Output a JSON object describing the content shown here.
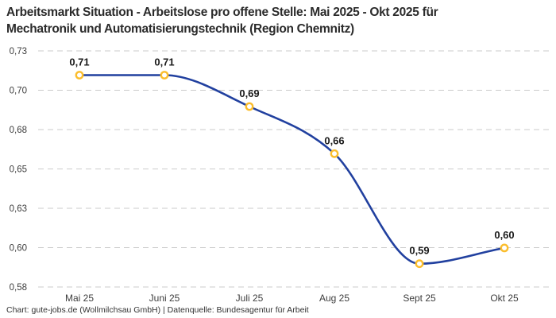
{
  "header": {
    "title_lines": [
      "Arbeitsmarkt Situation - Arbeitslose pro offene Stelle: Mai 2025 - Okt 2025 für",
      "Mechatronik und Automatisierungstechnik (Region Chemnitz)"
    ]
  },
  "chart_data": {
    "type": "line",
    "title": "Arbeitsmarkt Situation - Arbeitslose pro offene Stelle: Mai 2025 - Okt 2025 für Mechatronik und Automatisierungstechnik (Region Chemnitz)",
    "categories": [
      "Mai 25",
      "Juni 25",
      "Juli 25",
      "Aug 25",
      "Sept 25",
      "Okt 25"
    ],
    "values": [
      0.71,
      0.71,
      0.69,
      0.66,
      0.59,
      0.6
    ],
    "point_labels": [
      "0,71",
      "0,71",
      "0,69",
      "0,66",
      "0,59",
      "0,60"
    ],
    "y_tick_labels": [
      "0,73",
      "0,70",
      "0,68",
      "0,65",
      "0,63",
      "0,60",
      "0,58"
    ],
    "ylim": [
      0.58,
      0.73
    ],
    "xlabel": "",
    "ylabel": "",
    "grid": "horizontal-dashed",
    "legend": "none",
    "colors": {
      "line": "#21409F",
      "marker_ring": "#FBBD2C",
      "marker_fill": "#FFFFFF",
      "grid": "#CBCBCB",
      "point_label": "#1A1A1A",
      "tick_label": "#3D3D3D",
      "title": "#2B2B2B"
    }
  },
  "footer": {
    "text": "Chart: gute-jobs.de (Wollmilchsau GmbH) | Datenquelle: Bundesagentur für Arbeit"
  }
}
